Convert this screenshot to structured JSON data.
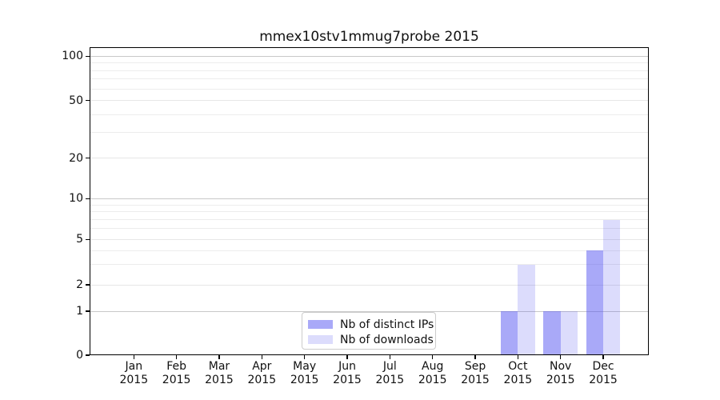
{
  "chart_data": {
    "type": "bar",
    "title": "mmex10stv1mmug7probe 2015",
    "categories": [
      "Jan",
      "Feb",
      "Mar",
      "Apr",
      "May",
      "Jun",
      "Jul",
      "Aug",
      "Sep",
      "Oct",
      "Nov",
      "Dec"
    ],
    "x_year_label": "2015",
    "series": [
      {
        "name": "Nb of distinct IPs",
        "color": "rgba(80,80,240,0.49)",
        "values": [
          0,
          0,
          0,
          0,
          0,
          0,
          0,
          0,
          0,
          1,
          1,
          4
        ]
      },
      {
        "name": "Nb of downloads",
        "color": "rgba(80,80,240,0.20)",
        "values": [
          0,
          0,
          0,
          0,
          0,
          0,
          0,
          0,
          0,
          3,
          1,
          7
        ]
      }
    ],
    "yticks": [
      0,
      1,
      2,
      5,
      10,
      20,
      50,
      100
    ],
    "minor_gridlines": [
      3,
      4,
      6,
      7,
      8,
      9,
      30,
      40,
      60,
      70,
      80,
      90
    ],
    "yscale": "log above 1, linear below 1",
    "ylim": [
      0,
      120
    ],
    "grid": "on",
    "legend_position": "lower center inside plot",
    "colors": {
      "major_gridline": "#c9c9c9",
      "minor_gridline": "#ececec",
      "labeled_gridline": "#e7e7e7",
      "axis": "#000000",
      "text": "#111111"
    }
  }
}
